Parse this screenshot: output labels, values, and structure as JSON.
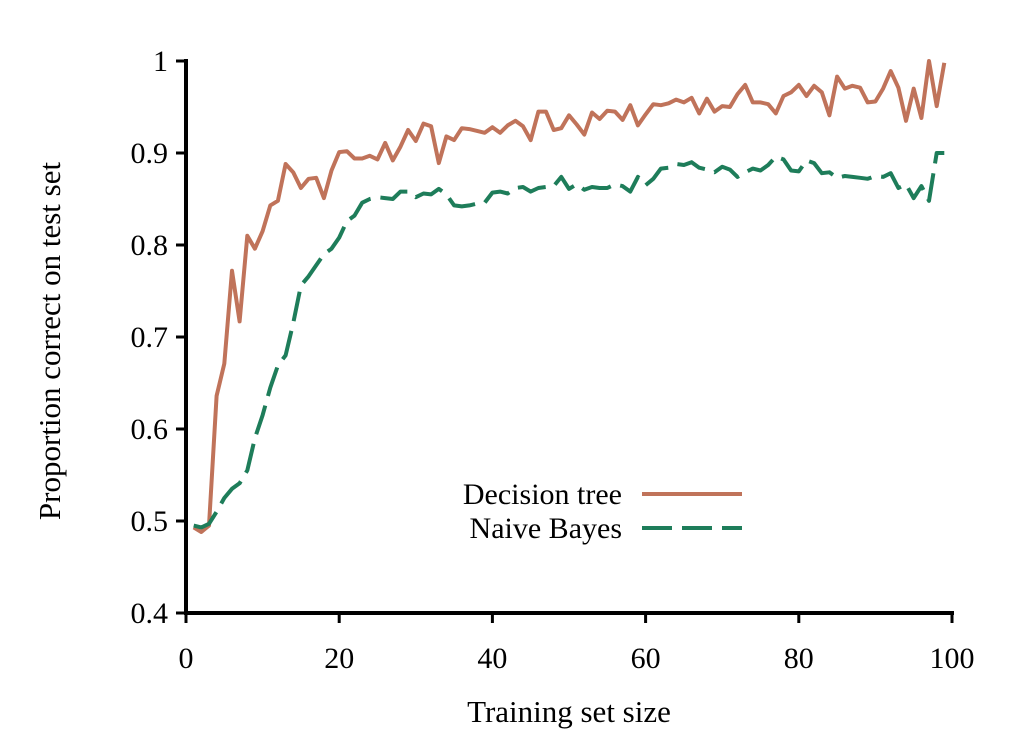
{
  "chart_data": {
    "type": "line",
    "title": "",
    "xlabel": "Training set size",
    "ylabel": "Proportion correct on test set",
    "xlim": [
      0,
      100
    ],
    "ylim": [
      0.4,
      1.0
    ],
    "xticks": [
      0,
      20,
      40,
      60,
      80,
      100
    ],
    "xtick_labels": [
      "0",
      "20",
      "40",
      "60",
      "80",
      "100"
    ],
    "yticks": [
      0.4,
      0.5,
      0.6,
      0.7,
      0.8,
      0.9,
      1.0
    ],
    "ytick_labels": [
      "0.4",
      "0.5",
      "0.6",
      "0.7",
      "0.8",
      "0.9",
      "1"
    ],
    "grid": false,
    "legend_position": "lower-center",
    "x": [
      1,
      2,
      3,
      4,
      5,
      6,
      7,
      8,
      9,
      10,
      11,
      12,
      13,
      14,
      15,
      16,
      17,
      18,
      19,
      20,
      21,
      22,
      23,
      24,
      25,
      26,
      27,
      28,
      29,
      30,
      31,
      32,
      33,
      34,
      35,
      36,
      37,
      38,
      39,
      40,
      41,
      42,
      43,
      44,
      45,
      46,
      47,
      48,
      49,
      50,
      51,
      52,
      53,
      54,
      55,
      56,
      57,
      58,
      59,
      60,
      61,
      62,
      63,
      64,
      65,
      66,
      67,
      68,
      69,
      70,
      71,
      72,
      73,
      74,
      75,
      76,
      77,
      78,
      79,
      80,
      81,
      82,
      83,
      84,
      85,
      86,
      87,
      88,
      89,
      90,
      91,
      92,
      93,
      94,
      95,
      96,
      97,
      98,
      99
    ],
    "series": [
      {
        "name": "Decision tree",
        "color": "#c0735a",
        "dash": "solid",
        "values": [
          0.493,
          0.488,
          0.495,
          0.636,
          0.671,
          0.772,
          0.717,
          0.81,
          0.796,
          0.815,
          0.843,
          0.848,
          0.888,
          0.879,
          0.862,
          0.872,
          0.873,
          0.851,
          0.881,
          0.901,
          0.902,
          0.894,
          0.894,
          0.897,
          0.893,
          0.911,
          0.892,
          0.907,
          0.925,
          0.913,
          0.932,
          0.929,
          0.889,
          0.918,
          0.914,
          0.927,
          0.926,
          0.924,
          0.922,
          0.928,
          0.922,
          0.93,
          0.935,
          0.929,
          0.914,
          0.945,
          0.945,
          0.925,
          0.927,
          0.941,
          0.931,
          0.92,
          0.944,
          0.937,
          0.946,
          0.945,
          0.936,
          0.952,
          0.93,
          0.942,
          0.953,
          0.952,
          0.954,
          0.958,
          0.955,
          0.96,
          0.943,
          0.959,
          0.945,
          0.951,
          0.95,
          0.964,
          0.974,
          0.955,
          0.955,
          0.953,
          0.943,
          0.962,
          0.966,
          0.974,
          0.962,
          0.973,
          0.966,
          0.941,
          0.983,
          0.97,
          0.973,
          0.971,
          0.955,
          0.956,
          0.97,
          0.989,
          0.971,
          0.935,
          0.97,
          0.938,
          1.0,
          0.951,
          0.998
        ]
      },
      {
        "name": "Naive Bayes",
        "color": "#1e7d5a",
        "dash": "dashed",
        "values": [
          0.495,
          0.493,
          0.497,
          0.51,
          0.525,
          0.535,
          0.541,
          0.555,
          0.59,
          0.615,
          0.645,
          0.669,
          0.68,
          0.715,
          0.756,
          0.766,
          0.778,
          0.79,
          0.796,
          0.808,
          0.826,
          0.832,
          0.846,
          0.85,
          0.852,
          0.851,
          0.85,
          0.858,
          0.858,
          0.852,
          0.856,
          0.855,
          0.861,
          0.855,
          0.843,
          0.842,
          0.843,
          0.845,
          0.846,
          0.857,
          0.858,
          0.856,
          0.862,
          0.863,
          0.858,
          0.862,
          0.863,
          0.864,
          0.874,
          0.861,
          0.866,
          0.86,
          0.863,
          0.862,
          0.862,
          0.866,
          0.864,
          0.858,
          0.874,
          0.865,
          0.872,
          0.883,
          0.884,
          0.888,
          0.887,
          0.89,
          0.884,
          0.882,
          0.879,
          0.885,
          0.882,
          0.874,
          0.879,
          0.883,
          0.881,
          0.887,
          0.896,
          0.893,
          0.881,
          0.88,
          0.892,
          0.889,
          0.878,
          0.879,
          0.873,
          0.875,
          0.874,
          0.873,
          0.872,
          0.875,
          0.874,
          0.878,
          0.862,
          0.866,
          0.851,
          0.864,
          0.848,
          0.9,
          0.9
        ]
      }
    ]
  }
}
